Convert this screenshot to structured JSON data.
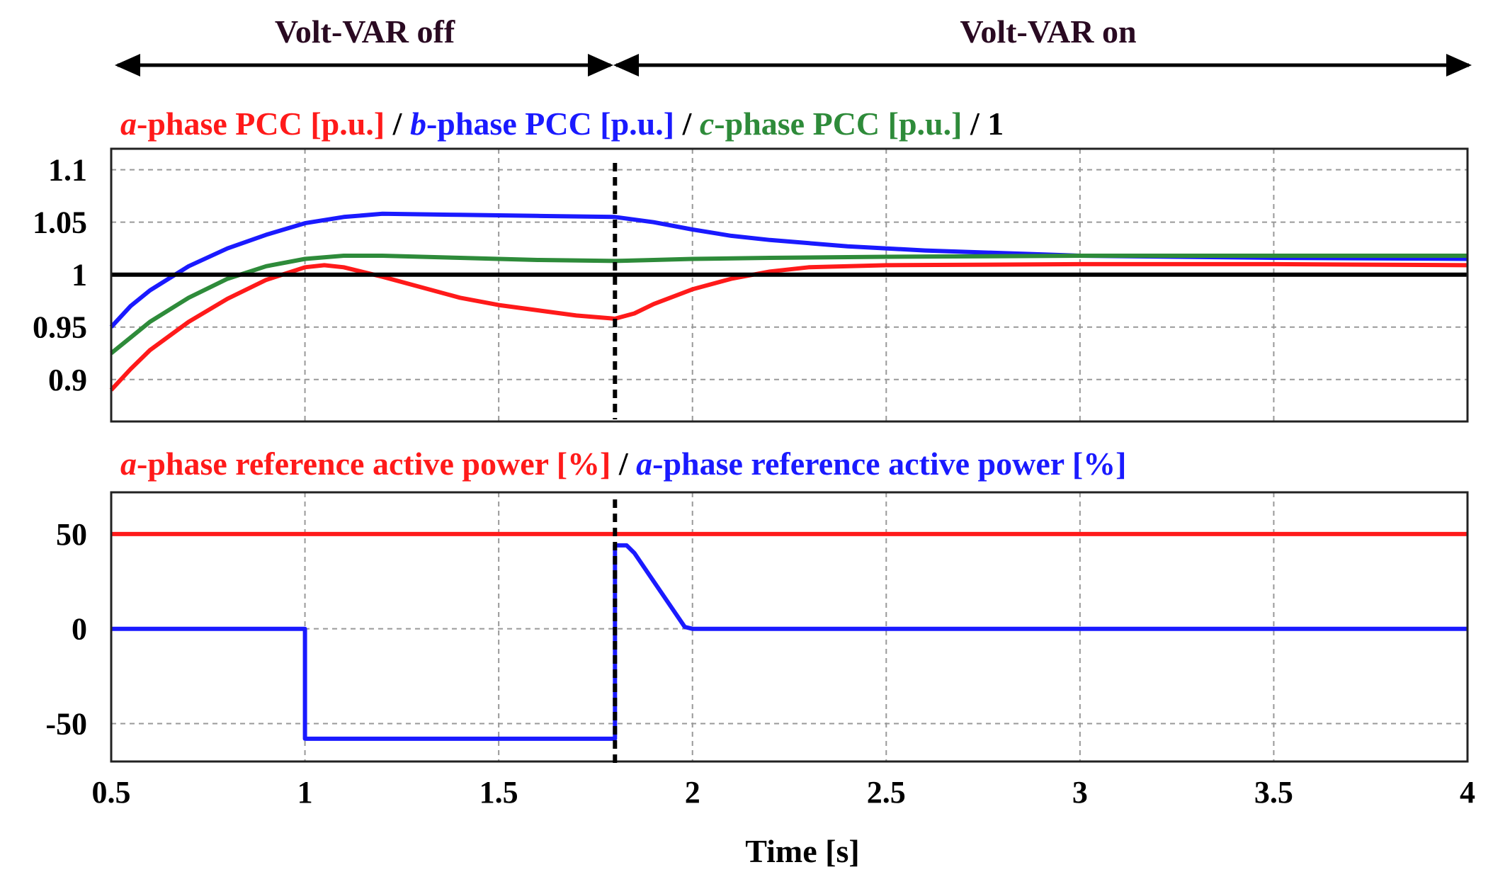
{
  "header": {
    "off_label": "Volt-VAR off",
    "on_label": "Volt-VAR on"
  },
  "colors": {
    "red": "#ff1a1a",
    "blue": "#1a1aff",
    "green": "#2e8b3a",
    "black": "#000000",
    "header_text": "#2a0a22"
  },
  "chart_data": [
    {
      "type": "line",
      "title_parts": [
        {
          "italic": "a",
          "text": "-phase PCC [p.u.]",
          "color": "#ff1a1a"
        },
        {
          "italic": "",
          "text": " / ",
          "color": "#000000"
        },
        {
          "italic": "b",
          "text": "-phase PCC [p.u.]",
          "color": "#1a1aff"
        },
        {
          "italic": "",
          "text": " / ",
          "color": "#000000"
        },
        {
          "italic": "c",
          "text": "-phase PCC [p.u.]",
          "color": "#2e8b3a"
        },
        {
          "italic": "",
          "text": " / 1",
          "color": "#000000"
        }
      ],
      "xlim": [
        0.5,
        4
      ],
      "ylim": [
        0.86,
        1.12
      ],
      "yticks": [
        0.9,
        0.95,
        1,
        1.05,
        1.1
      ],
      "ytick_labels": [
        "0.9",
        "0.95",
        "1",
        "1.05",
        "1.1"
      ],
      "grid": true,
      "series": [
        {
          "key": "a",
          "color": "#ff1a1a",
          "x": [
            0.5,
            0.55,
            0.6,
            0.7,
            0.8,
            0.9,
            1.0,
            1.05,
            1.1,
            1.2,
            1.3,
            1.4,
            1.5,
            1.6,
            1.7,
            1.8,
            1.85,
            1.9,
            2.0,
            2.1,
            2.2,
            2.3,
            2.5,
            3.0,
            3.5,
            4.0
          ],
          "y": [
            0.89,
            0.91,
            0.928,
            0.955,
            0.977,
            0.995,
            1.007,
            1.009,
            1.007,
            0.998,
            0.988,
            0.978,
            0.971,
            0.966,
            0.961,
            0.958,
            0.963,
            0.972,
            0.986,
            0.996,
            1.003,
            1.007,
            1.009,
            1.01,
            1.01,
            1.009
          ]
        },
        {
          "key": "b",
          "color": "#1a1aff",
          "x": [
            0.5,
            0.55,
            0.6,
            0.7,
            0.8,
            0.9,
            1.0,
            1.1,
            1.2,
            1.4,
            1.6,
            1.8,
            1.9,
            2.0,
            2.1,
            2.2,
            2.4,
            2.6,
            3.0,
            3.5,
            4.0
          ],
          "y": [
            0.95,
            0.97,
            0.985,
            1.008,
            1.025,
            1.038,
            1.049,
            1.055,
            1.058,
            1.057,
            1.056,
            1.055,
            1.05,
            1.043,
            1.037,
            1.033,
            1.027,
            1.023,
            1.018,
            1.016,
            1.015
          ]
        },
        {
          "key": "c",
          "color": "#2e8b3a",
          "x": [
            0.5,
            0.55,
            0.6,
            0.7,
            0.8,
            0.9,
            1.0,
            1.1,
            1.2,
            1.4,
            1.6,
            1.8,
            1.9,
            2.0,
            2.2,
            2.5,
            3.0,
            3.5,
            4.0
          ],
          "y": [
            0.925,
            0.94,
            0.955,
            0.978,
            0.996,
            1.008,
            1.015,
            1.018,
            1.018,
            1.016,
            1.014,
            1.013,
            1.014,
            1.015,
            1.016,
            1.017,
            1.018,
            1.018,
            1.018
          ]
        },
        {
          "key": "ref",
          "color": "#000000",
          "x": [
            0.5,
            4.0
          ],
          "y": [
            1.0,
            1.0
          ]
        }
      ]
    },
    {
      "type": "line",
      "title_parts": [
        {
          "italic": "a",
          "text": "-phase reference active power [%]",
          "color": "#ff1a1a"
        },
        {
          "italic": "",
          "text": " / ",
          "color": "#000000"
        },
        {
          "italic": "a",
          "text": "-phase reference active power [%]",
          "color": "#1a1aff"
        }
      ],
      "xlim": [
        0.5,
        4
      ],
      "ylim": [
        -70,
        72
      ],
      "yticks": [
        -50,
        0,
        50
      ],
      "ytick_labels": [
        "-50",
        "0",
        "50"
      ],
      "xticks": [
        0.5,
        1,
        1.5,
        2,
        2.5,
        3,
        3.5,
        4
      ],
      "xtick_labels": [
        "0.5",
        "1",
        "1.5",
        "2",
        "2.5",
        "3",
        "3.5",
        "4"
      ],
      "xlabel": "Time [s]",
      "grid": true,
      "series": [
        {
          "key": "a_ref_red",
          "color": "#ff1a1a",
          "x": [
            0.5,
            4.0
          ],
          "y": [
            50,
            50
          ]
        },
        {
          "key": "a_ref_blue",
          "color": "#1a1aff",
          "x": [
            0.5,
            1.0,
            1.0,
            1.8,
            1.8,
            1.83,
            1.85,
            1.9,
            1.95,
            1.98,
            2.0,
            4.0
          ],
          "y": [
            0,
            0,
            -58,
            -58,
            44,
            44,
            40,
            25,
            10,
            1,
            0,
            0
          ]
        }
      ]
    }
  ],
  "event": {
    "time": 1.8
  }
}
